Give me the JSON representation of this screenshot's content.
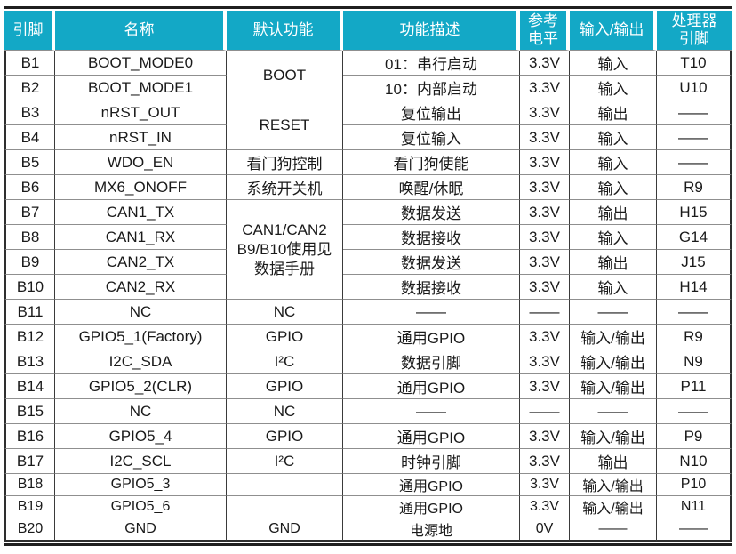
{
  "colors": {
    "header_bg": "#13A8C6",
    "header_text": "#FFFFFF",
    "grid_dark": "#3A3A3A",
    "grid_gray": "#8F8F8F"
  },
  "header": {
    "pin": "引脚",
    "name": "名称",
    "default_function": "默认功能",
    "description": "功能描述",
    "ref_level": [
      "参考",
      "电平"
    ],
    "io": "输入/输出",
    "processor_pin": [
      "处理器",
      "引脚"
    ]
  },
  "merged": {
    "boot": "BOOT",
    "reset": "RESET",
    "can": "CAN1/CAN2\nB9/B10使用见\n数据手册"
  },
  "rows": [
    {
      "pin": "B1",
      "name": "BOOT_MODE0",
      "def": "",
      "desc": "01：串行启动",
      "lvl": "3.3V",
      "io": "输入",
      "proc": "T10"
    },
    {
      "pin": "B2",
      "name": "BOOT_MODE1",
      "def": "",
      "desc": "10：内部启动",
      "lvl": "3.3V",
      "io": "输入",
      "proc": "U10"
    },
    {
      "pin": "B3",
      "name": "nRST_OUT",
      "def": "",
      "desc": "复位输出",
      "lvl": "3.3V",
      "io": "输出",
      "proc": "——"
    },
    {
      "pin": "B4",
      "name": "nRST_IN",
      "def": "",
      "desc": "复位输入",
      "lvl": "3.3V",
      "io": "输入",
      "proc": "——"
    },
    {
      "pin": "B5",
      "name": "WDO_EN",
      "def": "看门狗控制",
      "desc": "看门狗使能",
      "lvl": "3.3V",
      "io": "输入",
      "proc": "——"
    },
    {
      "pin": "B6",
      "name": "MX6_ONOFF",
      "def": "系统开关机",
      "desc": "唤醒/休眠",
      "lvl": "3.3V",
      "io": "输入",
      "proc": "R9"
    },
    {
      "pin": "B7",
      "name": "CAN1_TX",
      "def": "",
      "desc": "数据发送",
      "lvl": "3.3V",
      "io": "输出",
      "proc": "H15"
    },
    {
      "pin": "B8",
      "name": "CAN1_RX",
      "def": "",
      "desc": "数据接收",
      "lvl": "3.3V",
      "io": "输入",
      "proc": "G14"
    },
    {
      "pin": "B9",
      "name": "CAN2_TX",
      "def": "",
      "desc": "数据发送",
      "lvl": "3.3V",
      "io": "输出",
      "proc": "J15"
    },
    {
      "pin": "B10",
      "name": "CAN2_RX",
      "def": "",
      "desc": "数据接收",
      "lvl": "3.3V",
      "io": "输入",
      "proc": "H14"
    },
    {
      "pin": "B11",
      "name": "NC",
      "def": "NC",
      "desc": "——",
      "lvl": "——",
      "io": "——",
      "proc": "——"
    },
    {
      "pin": "B12",
      "name": "GPIO5_1(Factory)",
      "def": "GPIO",
      "desc": "通用GPIO",
      "lvl": "3.3V",
      "io": "输入/输出",
      "proc": "R9"
    },
    {
      "pin": "B13",
      "name": "I2C_SDA",
      "def": "I²C",
      "desc": "数据引脚",
      "lvl": "3.3V",
      "io": "输入/输出",
      "proc": "N9"
    },
    {
      "pin": "B14",
      "name": "GPIO5_2(CLR)",
      "def": "GPIO",
      "desc": "通用GPIO",
      "lvl": "3.3V",
      "io": "输入/输出",
      "proc": "P11"
    },
    {
      "pin": "B15",
      "name": "NC",
      "def": "NC",
      "desc": "——",
      "lvl": "——",
      "io": "——",
      "proc": "——"
    },
    {
      "pin": "B16",
      "name": "GPIO5_4",
      "def": "GPIO",
      "desc": "通用GPIO",
      "lvl": "3.3V",
      "io": "输入/输出",
      "proc": "P9"
    },
    {
      "pin": "B17",
      "name": "I2C_SCL",
      "def": "I²C",
      "desc": "时钟引脚",
      "lvl": "3.3V",
      "io": "输出",
      "proc": "N10"
    },
    {
      "pin": "B18",
      "name": "GPIO5_3",
      "def": "",
      "desc": "通用GPIO",
      "lvl": "3.3V",
      "io": "输入/输出",
      "proc": "P10"
    },
    {
      "pin": "B19",
      "name": "GPIO5_6",
      "def": "",
      "desc": "通用GPIO",
      "lvl": "3.3V",
      "io": "输入/输出",
      "proc": "N11"
    },
    {
      "pin": "B20",
      "name": "GND",
      "def": "GND",
      "desc": "电源地",
      "lvl": "0V",
      "io": "——",
      "proc": "——"
    }
  ]
}
